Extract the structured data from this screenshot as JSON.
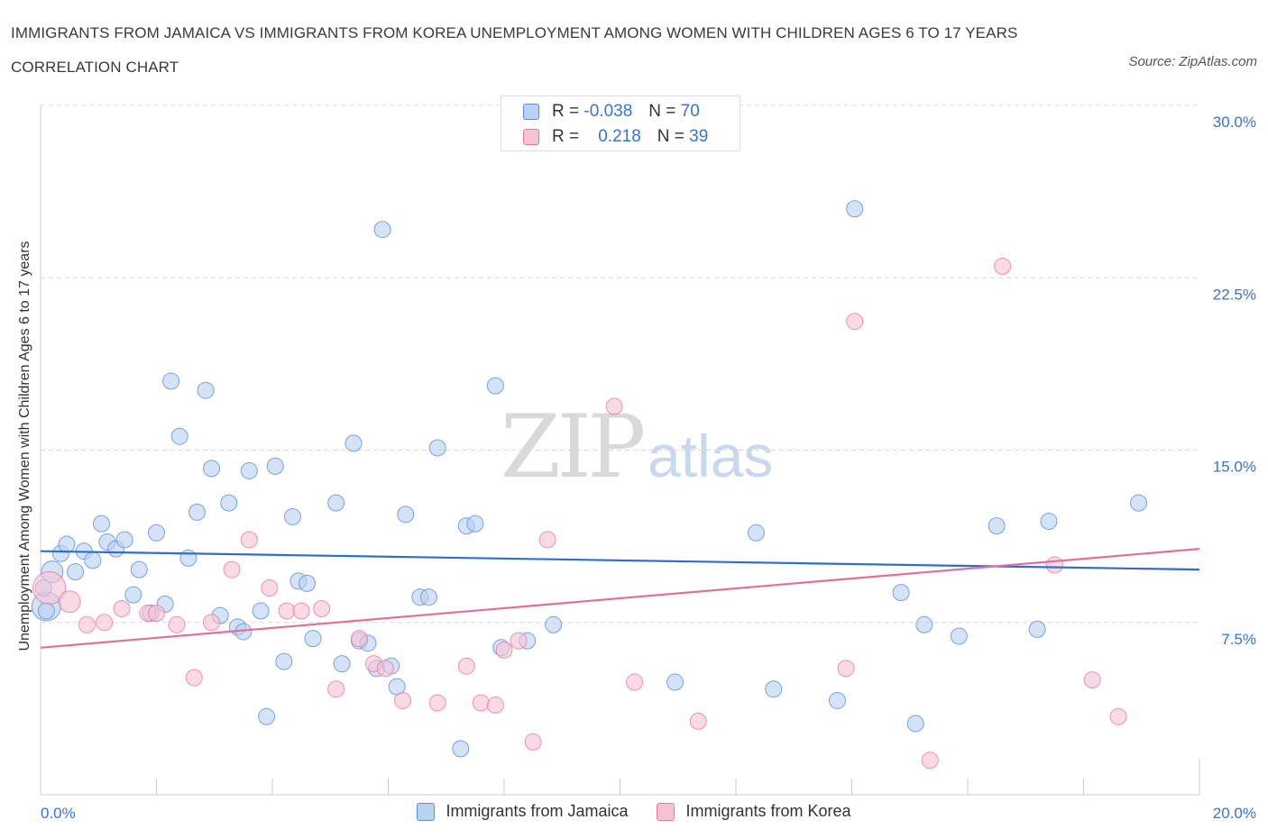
{
  "title": "IMMIGRANTS FROM JAMAICA VS IMMIGRANTS FROM KOREA UNEMPLOYMENT AMONG WOMEN WITH CHILDREN AGES 6 TO 17 YEARS CORRELATION CHART",
  "source": "Source: ZipAtlas.com",
  "watermark": {
    "zip": "ZIP",
    "atlas": "atlas"
  },
  "legend": {
    "jamaica": {
      "r_label": "R =",
      "r_value": "-0.038",
      "n_label": "N =",
      "n_value": "70"
    },
    "korea": {
      "r_label": "R =",
      "r_value": "0.218",
      "n_label": "N =",
      "n_value": "39"
    }
  },
  "colors": {
    "jamaica": "#5b8fd6",
    "jamaica_fill": "#b9d1f3",
    "korea": "#e8799f",
    "korea_fill": "#f7c3d4",
    "tick": "#3a74c9"
  },
  "chart_data": {
    "type": "scatter",
    "ylabel": "Unemployment Among Women with Children Ages 6 to 17 years",
    "xlabel": "",
    "xlim": [
      0,
      20
    ],
    "ylim": [
      0,
      30
    ],
    "x_tick_labels": [
      "0.0%",
      "20.0%"
    ],
    "y_ticks": [
      7.5,
      15.0,
      22.5,
      30.0
    ],
    "y_tick_labels": [
      "7.5%",
      "15.0%",
      "22.5%",
      "30.0%"
    ],
    "grid": "horizontal dashed",
    "legend_position": "bottom",
    "series": [
      {
        "name": "Immigrants from Jamaica",
        "color": "#5b8fd6",
        "trend": {
          "x": [
            0,
            20
          ],
          "y": [
            10.6,
            9.8
          ]
        },
        "points": [
          [
            0.1,
            8.2
          ],
          [
            0.2,
            9.7
          ],
          [
            0.35,
            10.5
          ],
          [
            0.45,
            10.9
          ],
          [
            0.6,
            9.7
          ],
          [
            0.75,
            10.6
          ],
          [
            0.9,
            10.2
          ],
          [
            1.05,
            11.8
          ],
          [
            1.15,
            11.0
          ],
          [
            1.3,
            10.7
          ],
          [
            1.45,
            11.1
          ],
          [
            1.6,
            8.7
          ],
          [
            1.7,
            9.8
          ],
          [
            1.9,
            7.9
          ],
          [
            2.0,
            11.4
          ],
          [
            2.15,
            8.3
          ],
          [
            2.25,
            18.0
          ],
          [
            2.4,
            15.6
          ],
          [
            2.55,
            10.3
          ],
          [
            2.7,
            12.3
          ],
          [
            2.85,
            17.6
          ],
          [
            2.95,
            14.2
          ],
          [
            3.1,
            7.8
          ],
          [
            3.25,
            12.7
          ],
          [
            3.4,
            7.3
          ],
          [
            3.5,
            7.1
          ],
          [
            3.6,
            14.1
          ],
          [
            3.8,
            8.0
          ],
          [
            3.9,
            3.4
          ],
          [
            4.05,
            14.3
          ],
          [
            4.2,
            5.8
          ],
          [
            4.35,
            12.1
          ],
          [
            4.45,
            9.3
          ],
          [
            4.6,
            9.2
          ],
          [
            4.7,
            6.8
          ],
          [
            5.1,
            12.7
          ],
          [
            5.2,
            5.7
          ],
          [
            5.4,
            15.3
          ],
          [
            5.5,
            6.7
          ],
          [
            5.65,
            6.6
          ],
          [
            5.8,
            5.5
          ],
          [
            5.9,
            24.6
          ],
          [
            6.05,
            5.6
          ],
          [
            6.15,
            4.7
          ],
          [
            6.3,
            12.2
          ],
          [
            6.55,
            8.6
          ],
          [
            6.7,
            8.6
          ],
          [
            6.85,
            15.1
          ],
          [
            7.25,
            2.0
          ],
          [
            7.35,
            11.7
          ],
          [
            7.5,
            11.8
          ],
          [
            7.85,
            17.8
          ],
          [
            7.95,
            6.4
          ],
          [
            8.4,
            6.7
          ],
          [
            8.85,
            7.4
          ],
          [
            10.95,
            4.9
          ],
          [
            12.35,
            11.4
          ],
          [
            12.65,
            4.6
          ],
          [
            13.75,
            4.1
          ],
          [
            14.05,
            25.5
          ],
          [
            14.85,
            8.8
          ],
          [
            15.1,
            3.1
          ],
          [
            15.25,
            7.4
          ],
          [
            15.85,
            6.9
          ],
          [
            16.5,
            11.7
          ],
          [
            17.2,
            7.2
          ],
          [
            17.4,
            11.9
          ],
          [
            18.95,
            12.7
          ],
          [
            0.05,
            9.0
          ],
          [
            0.1,
            8.0
          ]
        ],
        "sizes": [
          16,
          12,
          9,
          9,
          9,
          9,
          9,
          9,
          9,
          9,
          9,
          9,
          9,
          9,
          9,
          9,
          9,
          9,
          9,
          9,
          9,
          9,
          9,
          9,
          9,
          9,
          9,
          9,
          9,
          9,
          9,
          9,
          9,
          9,
          9,
          9,
          9,
          9,
          9,
          9,
          9,
          9,
          9,
          9,
          9,
          9,
          9,
          9,
          9,
          9,
          9,
          9,
          9,
          9,
          9,
          9,
          9,
          9,
          9,
          9,
          9,
          9,
          9,
          9,
          9,
          9,
          9,
          9,
          9,
          9
        ]
      },
      {
        "name": "Immigrants from Korea",
        "color": "#e8799f",
        "trend": {
          "x": [
            0,
            20
          ],
          "y": [
            6.4,
            10.7
          ]
        },
        "points": [
          [
            0.15,
            9.0
          ],
          [
            0.5,
            8.4
          ],
          [
            0.8,
            7.4
          ],
          [
            1.1,
            7.5
          ],
          [
            1.4,
            8.1
          ],
          [
            1.85,
            7.9
          ],
          [
            2.0,
            7.9
          ],
          [
            2.35,
            7.4
          ],
          [
            2.65,
            5.1
          ],
          [
            2.95,
            7.5
          ],
          [
            3.3,
            9.8
          ],
          [
            3.6,
            11.1
          ],
          [
            3.95,
            9.0
          ],
          [
            4.25,
            8.0
          ],
          [
            4.5,
            8.0
          ],
          [
            4.85,
            8.1
          ],
          [
            5.1,
            4.6
          ],
          [
            5.5,
            6.8
          ],
          [
            5.75,
            5.7
          ],
          [
            5.95,
            5.5
          ],
          [
            6.25,
            4.1
          ],
          [
            6.85,
            4.0
          ],
          [
            7.35,
            5.6
          ],
          [
            7.6,
            4.0
          ],
          [
            7.85,
            3.9
          ],
          [
            8.0,
            6.3
          ],
          [
            8.25,
            6.7
          ],
          [
            8.5,
            2.3
          ],
          [
            8.75,
            11.1
          ],
          [
            9.9,
            16.9
          ],
          [
            10.25,
            4.9
          ],
          [
            11.35,
            3.2
          ],
          [
            13.9,
            5.5
          ],
          [
            14.05,
            20.6
          ],
          [
            15.35,
            1.5
          ],
          [
            16.6,
            23.0
          ],
          [
            17.5,
            10.0
          ],
          [
            18.15,
            5.0
          ],
          [
            18.6,
            3.4
          ]
        ],
        "sizes": [
          18,
          12,
          9,
          9,
          9,
          9,
          9,
          9,
          9,
          9,
          9,
          9,
          9,
          9,
          9,
          9,
          9,
          9,
          9,
          9,
          9,
          9,
          9,
          9,
          9,
          9,
          9,
          9,
          9,
          9,
          9,
          9,
          9,
          9,
          9,
          9,
          9,
          9,
          9
        ]
      }
    ]
  }
}
